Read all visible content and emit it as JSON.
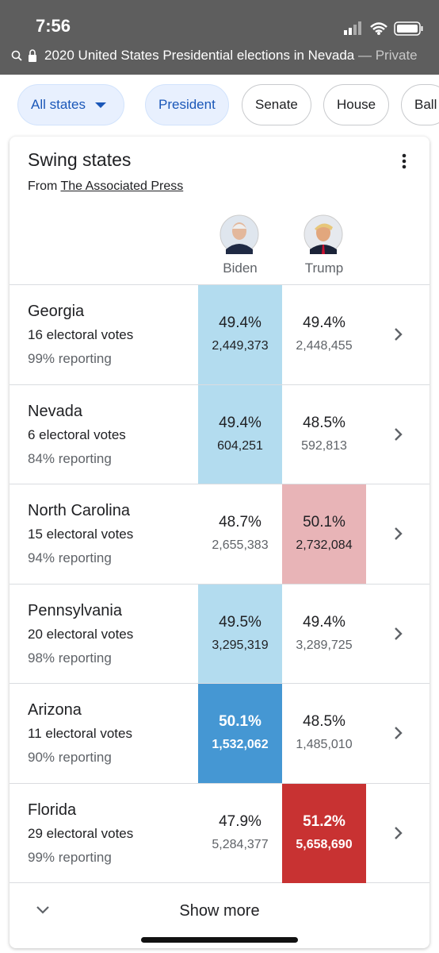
{
  "status_bar": {
    "time": "7:56"
  },
  "address_bar": {
    "title": "2020 United States Presidential elections in Nevada",
    "suffix": "— Private"
  },
  "chips": [
    "All states",
    "President",
    "Senate",
    "House",
    "Ball"
  ],
  "card": {
    "title": "Swing states",
    "source_prefix": "From",
    "source": "The Associated Press",
    "candidates": [
      "Biden",
      "Trump"
    ],
    "rows": [
      {
        "state": "Georgia",
        "electoral_votes": "16 electoral votes",
        "reporting": "99% reporting",
        "results": [
          {
            "pct": "49.4%",
            "votes": "2,449,373"
          },
          {
            "pct": "49.4%",
            "votes": "2,448,455"
          }
        ],
        "highlight": {
          "column": 0,
          "color": "#b3dcef",
          "text_color": "#202124"
        }
      },
      {
        "state": "Nevada",
        "electoral_votes": "6 electoral votes",
        "reporting": "84% reporting",
        "results": [
          {
            "pct": "49.4%",
            "votes": "604,251"
          },
          {
            "pct": "48.5%",
            "votes": "592,813"
          }
        ],
        "highlight": {
          "column": 0,
          "color": "#b3dcef",
          "text_color": "#202124"
        }
      },
      {
        "state": "North Carolina",
        "electoral_votes": "15 electoral votes",
        "reporting": "94% reporting",
        "results": [
          {
            "pct": "48.7%",
            "votes": "2,655,383"
          },
          {
            "pct": "50.1%",
            "votes": "2,732,084"
          }
        ],
        "highlight": {
          "column": 1,
          "color": "#e8b4b7",
          "text_color": "#202124"
        }
      },
      {
        "state": "Pennsylvania",
        "electoral_votes": "20 electoral votes",
        "reporting": "98% reporting",
        "results": [
          {
            "pct": "49.5%",
            "votes": "3,295,319"
          },
          {
            "pct": "49.4%",
            "votes": "3,289,725"
          }
        ],
        "highlight": {
          "column": 0,
          "color": "#b3dcef",
          "text_color": "#202124"
        }
      },
      {
        "state": "Arizona",
        "electoral_votes": "11 electoral votes",
        "reporting": "90% reporting",
        "results": [
          {
            "pct": "50.1%",
            "votes": "1,532,062"
          },
          {
            "pct": "48.5%",
            "votes": "1,485,010"
          }
        ],
        "highlight": {
          "column": 0,
          "color": "#4597d3",
          "text_color": "#ffffff"
        }
      },
      {
        "state": "Florida",
        "electoral_votes": "29 electoral votes",
        "reporting": "99% reporting",
        "results": [
          {
            "pct": "47.9%",
            "votes": "5,284,377"
          },
          {
            "pct": "51.2%",
            "votes": "5,658,690"
          }
        ],
        "highlight": {
          "column": 1,
          "color": "#c83232",
          "text_color": "#ffffff"
        }
      }
    ],
    "show_more": "Show more"
  }
}
